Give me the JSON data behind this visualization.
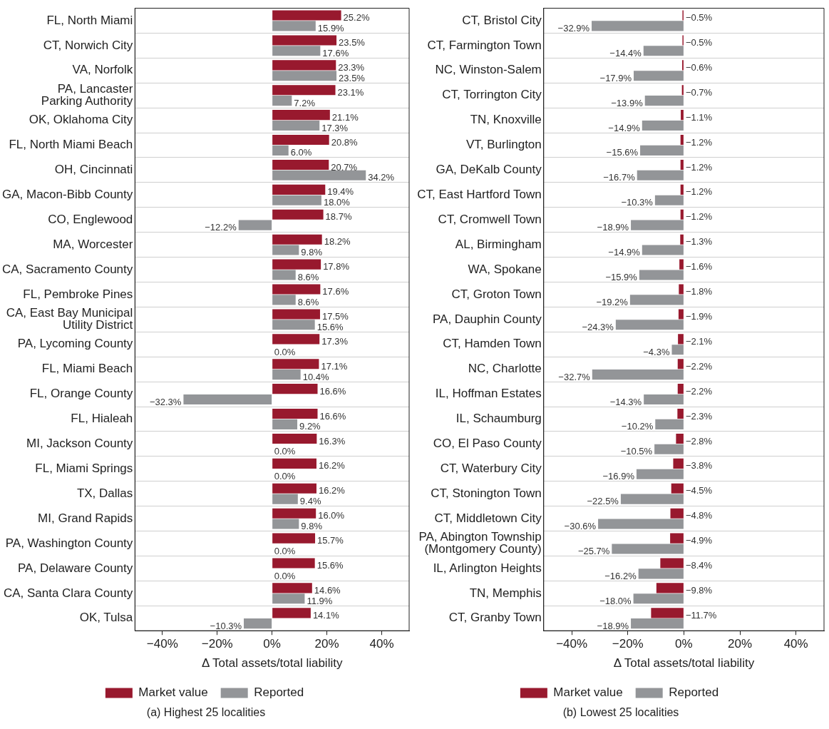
{
  "chart_data": [
    {
      "type": "bar",
      "orientation": "horizontal",
      "xlabel": "Δ Total assets/total liability",
      "annotations": [
        "(a) Highest 25 localities"
      ],
      "categories": [
        "FL, North Miami",
        "CT, Norwich City",
        "VA, Norfolk",
        "PA, Lancaster\nParking Authority",
        "OK, Oklahoma City",
        "FL, North Miami Beach",
        "OH, Cincinnati",
        "GA, Macon-Bibb County",
        "CO, Englewood",
        "MA, Worcester",
        "CA, Sacramento County",
        "FL, Pembroke Pines",
        "CA, East Bay Municipal\nUtility District",
        "PA, Lycoming County",
        "FL, Miami Beach",
        "FL, Orange County",
        "FL, Hialeah",
        "MI, Jackson County",
        "FL, Miami Springs",
        "TX, Dallas",
        "MI, Grand Rapids",
        "PA, Washington County",
        "PA, Delaware County",
        "CA, Santa Clara County",
        "OK, Tulsa"
      ],
      "series": [
        {
          "name": "Market value",
          "color": "#98192e",
          "values": [
            25.2,
            23.5,
            23.3,
            23.1,
            21.1,
            20.8,
            20.7,
            19.4,
            18.7,
            18.2,
            17.8,
            17.6,
            17.5,
            17.3,
            17.1,
            16.6,
            16.6,
            16.3,
            16.2,
            16.2,
            16.0,
            15.7,
            15.6,
            14.6,
            14.1
          ],
          "value_labels": [
            "25.2%",
            "23.5%",
            "23.3%",
            "23.1%",
            "21.1%",
            "20.8%",
            "20.7%",
            "19.4%",
            "18.7%",
            "18.2%",
            "17.8%",
            "17.6%",
            "17.5%",
            "17.3%",
            "17.1%",
            "16.6%",
            "16.6%",
            "16.3%",
            "16.2%",
            "16.2%",
            "16.0%",
            "15.7%",
            "15.6%",
            "14.6%",
            "14.1%"
          ]
        },
        {
          "name": "Reported",
          "color": "#939598",
          "values": [
            15.9,
            17.6,
            23.5,
            7.2,
            17.3,
            6.0,
            34.2,
            18.0,
            -12.2,
            9.8,
            8.6,
            8.6,
            15.6,
            0.0,
            10.4,
            -32.3,
            9.2,
            0.0,
            0.0,
            9.4,
            9.8,
            0.0,
            0.0,
            11.9,
            -10.3
          ],
          "value_labels": [
            "15.9%",
            "17.6%",
            "23.5%",
            "7.2%",
            "17.3%",
            "6.0%",
            "34.2%",
            "18.0%",
            "−12.2%",
            "9.8%",
            "8.6%",
            "8.6%",
            "15.6%",
            "0.0%",
            "10.4%",
            "−32.3%",
            "9.2%",
            "0.0%",
            "0.0%",
            "9.4%",
            "9.8%",
            "0.0%",
            "0.0%",
            "11.9%",
            "−10.3%"
          ]
        }
      ],
      "xlim": [
        -50,
        50
      ],
      "xticks": [
        {
          "value": -40,
          "label": "−40%"
        },
        {
          "value": -20,
          "label": "−20%"
        },
        {
          "value": 0,
          "label": "0%"
        },
        {
          "value": 20,
          "label": "20%"
        },
        {
          "value": 40,
          "label": "40%"
        }
      ],
      "grid": "y",
      "legend": "bottom"
    },
    {
      "type": "bar",
      "orientation": "horizontal",
      "xlabel": "Δ Total assets/total liability",
      "annotations": [
        "(b) Lowest 25 localities"
      ],
      "categories": [
        "CT, Bristol City",
        "CT, Farmington Town",
        "NC, Winston-Salem",
        "CT, Torrington City",
        "TN, Knoxville",
        "VT, Burlington",
        "GA, DeKalb County",
        "CT, East Hartford Town",
        "CT, Cromwell Town",
        "AL, Birmingham",
        "WA, Spokane",
        "CT, Groton Town",
        "PA, Dauphin County",
        "CT, Hamden Town",
        "NC, Charlotte",
        "IL, Hoffman Estates",
        "IL, Schaumburg",
        "CO, El Paso County",
        "CT, Waterbury City",
        "CT, Stonington Town",
        "CT, Middletown City",
        "PA, Abington Township\n(Montgomery County)",
        "IL, Arlington Heights",
        "TN, Memphis",
        "CT, Granby Town"
      ],
      "series": [
        {
          "name": "Market value",
          "color": "#98192e",
          "values": [
            -0.5,
            -0.5,
            -0.6,
            -0.7,
            -1.1,
            -1.2,
            -1.2,
            -1.2,
            -1.2,
            -1.3,
            -1.6,
            -1.8,
            -1.9,
            -2.1,
            -2.2,
            -2.2,
            -2.3,
            -2.8,
            -3.8,
            -4.5,
            -4.8,
            -4.9,
            -8.4,
            -9.8,
            -11.7
          ],
          "value_labels": [
            "−0.5%",
            "−0.5%",
            "−0.6%",
            "−0.7%",
            "−1.1%",
            "−1.2%",
            "−1.2%",
            "−1.2%",
            "−1.2%",
            "−1.3%",
            "−1.6%",
            "−1.8%",
            "−1.9%",
            "−2.1%",
            "−2.2%",
            "−2.2%",
            "−2.3%",
            "−2.8%",
            "−3.8%",
            "−4.5%",
            "−4.8%",
            "−4.9%",
            "−8.4%",
            "−9.8%",
            "−11.7%"
          ]
        },
        {
          "name": "Reported",
          "color": "#939598",
          "values": [
            -32.9,
            -14.4,
            -17.9,
            -13.9,
            -14.9,
            -15.6,
            -16.7,
            -10.3,
            -18.9,
            -14.9,
            -15.9,
            -19.2,
            -24.3,
            -4.3,
            -32.7,
            -14.3,
            -10.2,
            -10.5,
            -16.9,
            -22.5,
            -30.6,
            -25.7,
            -16.2,
            -18.0,
            -18.9
          ],
          "value_labels": [
            "−32.9%",
            "−14.4%",
            "−17.9%",
            "−13.9%",
            "−14.9%",
            "−15.6%",
            "−16.7%",
            "−10.3%",
            "−18.9%",
            "−14.9%",
            "−15.9%",
            "−19.2%",
            "−24.3%",
            "−4.3%",
            "−32.7%",
            "−14.3%",
            "−10.2%",
            "−10.5%",
            "−16.9%",
            "−22.5%",
            "−30.6%",
            "−25.7%",
            "−16.2%",
            "−18.0%",
            "−18.9%"
          ]
        }
      ],
      "xlim": [
        -50,
        50
      ],
      "xticks": [
        {
          "value": -40,
          "label": "−40%"
        },
        {
          "value": -20,
          "label": "−20%"
        },
        {
          "value": 0,
          "label": "0%"
        },
        {
          "value": 20,
          "label": "20%"
        },
        {
          "value": 40,
          "label": "40%"
        }
      ],
      "grid": "y",
      "legend": "bottom"
    }
  ]
}
